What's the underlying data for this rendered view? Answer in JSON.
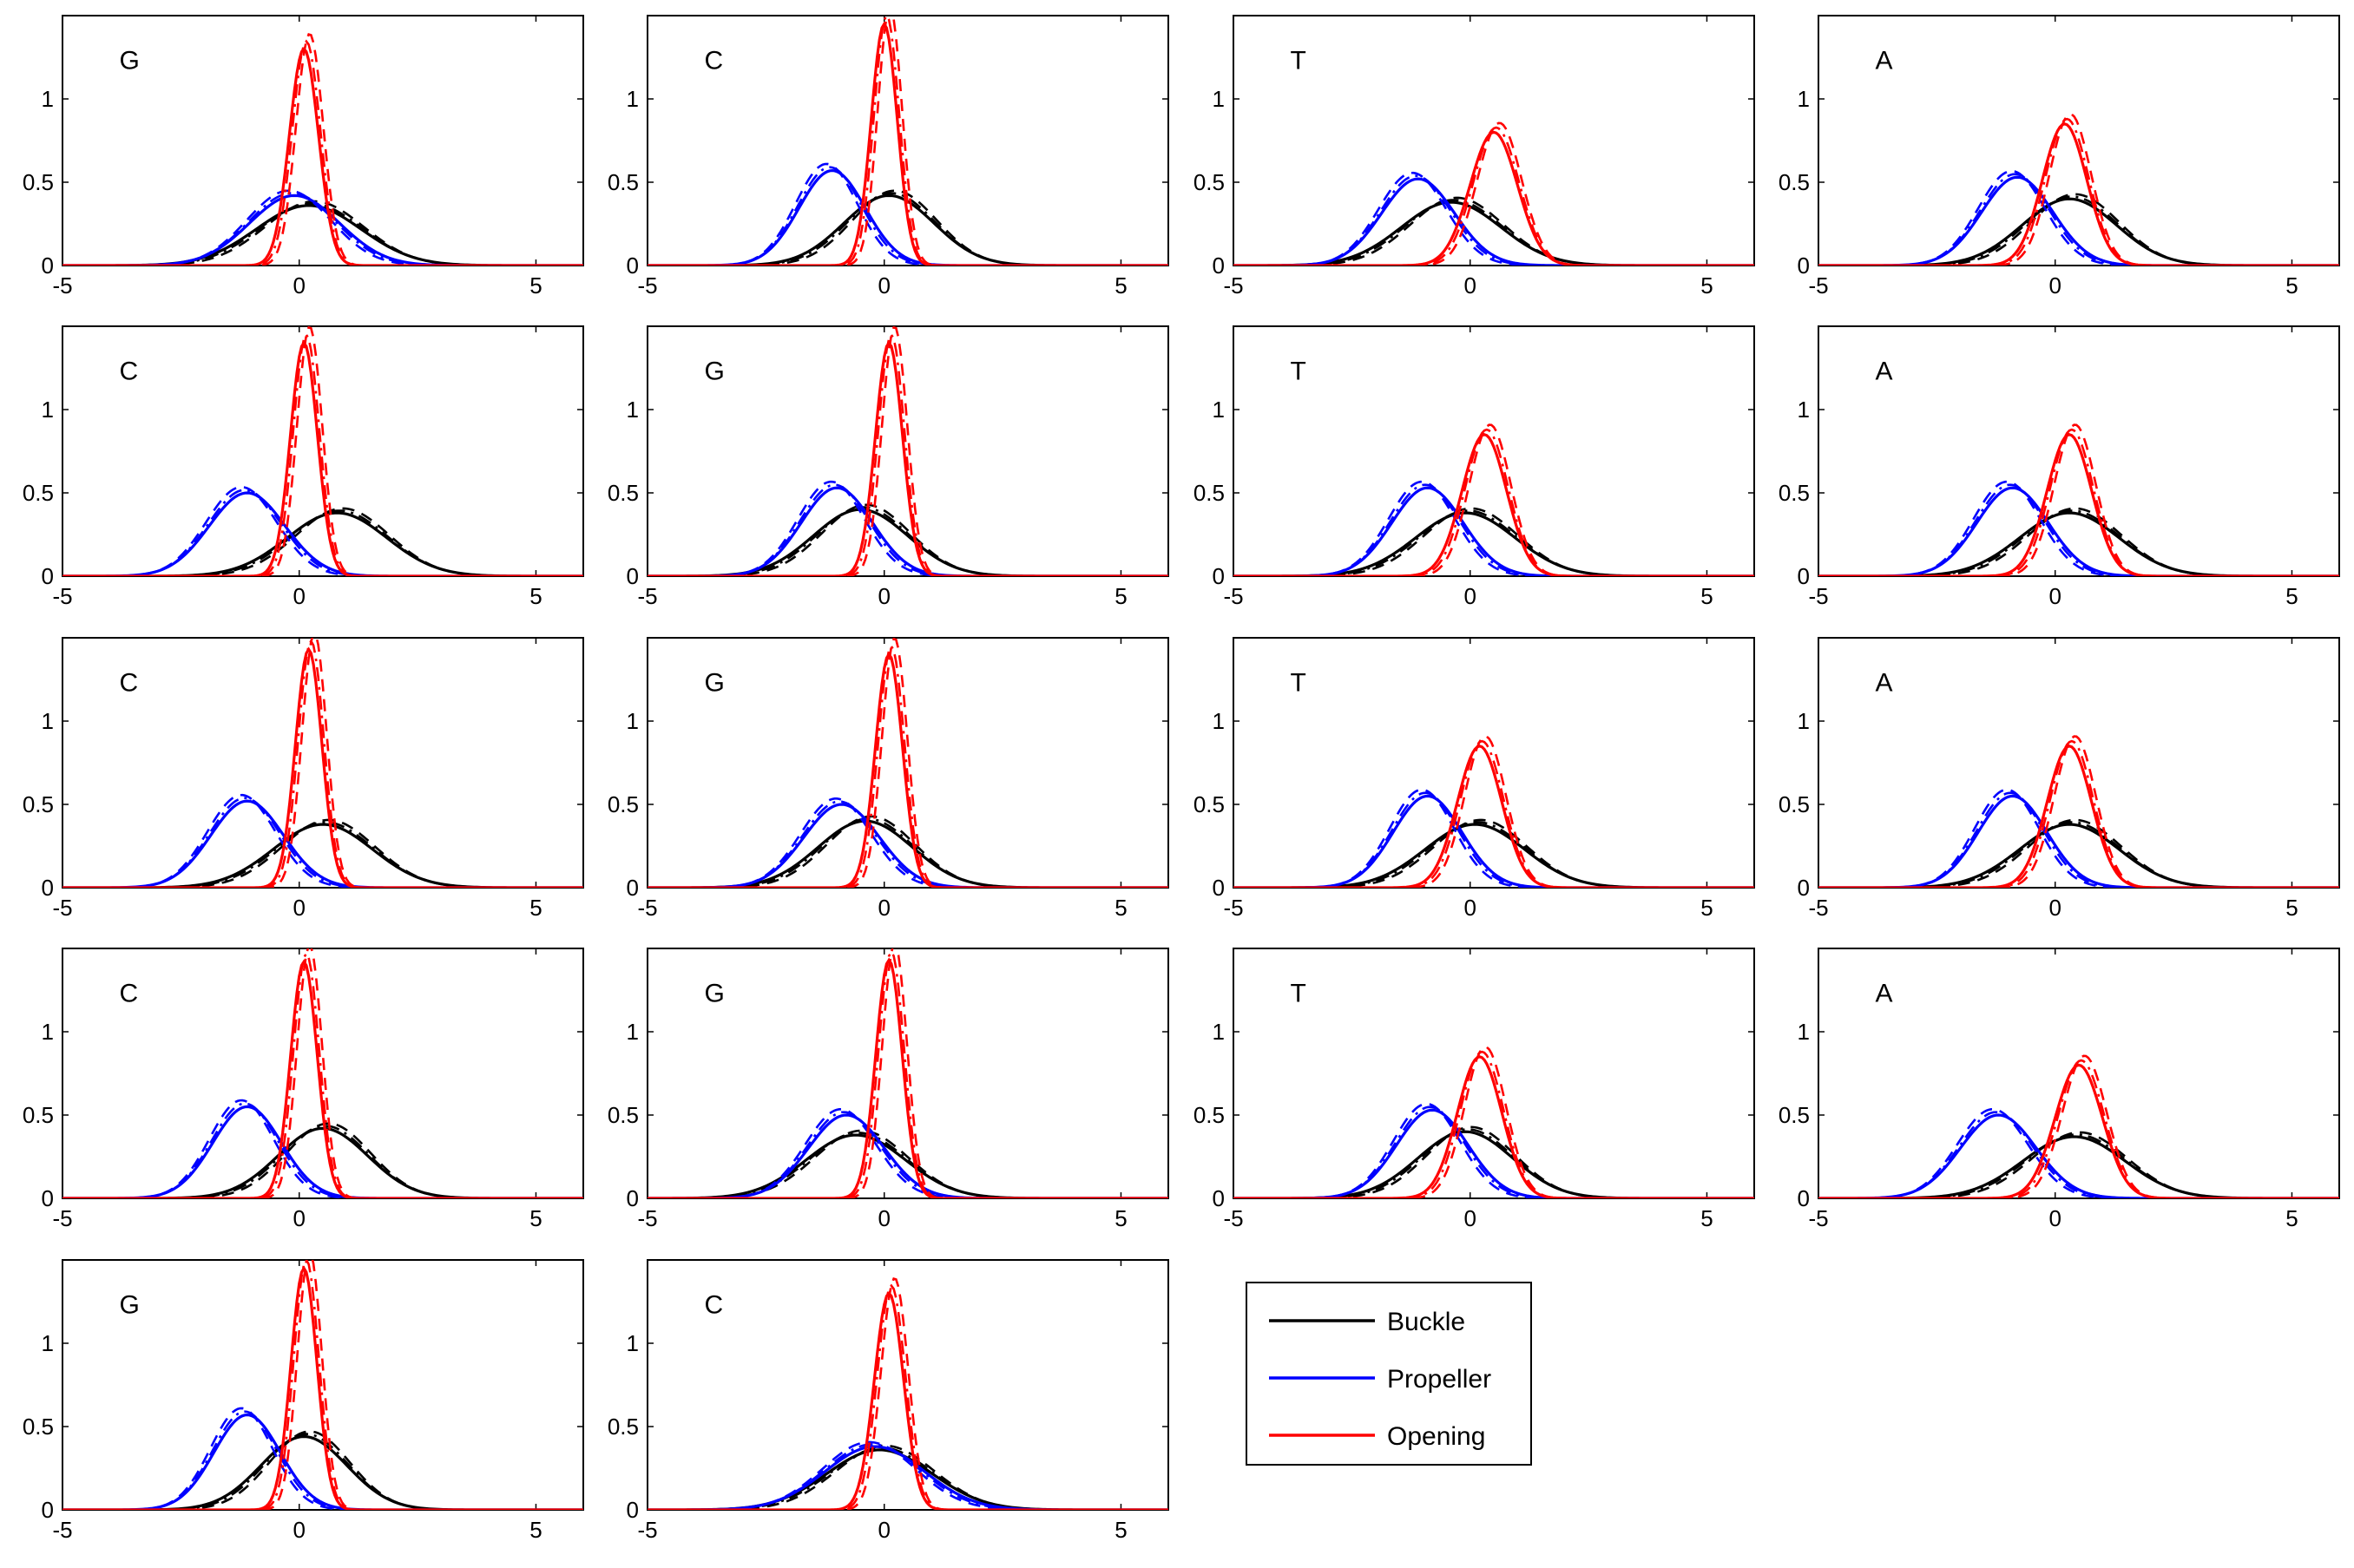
{
  "chart_data": {
    "type": "line",
    "layout": {
      "rows": 5,
      "cols": 4
    },
    "x_range": [
      -5,
      6
    ],
    "y_range": [
      0,
      1.5
    ],
    "x_ticks": [
      -5,
      0,
      5
    ],
    "y_ticks": [
      0,
      0.5,
      1
    ],
    "series": [
      {
        "name": "Buckle",
        "color": "#000000"
      },
      {
        "name": "Propeller",
        "color": "#0000ff"
      },
      {
        "name": "Opening",
        "color": "#ff0000"
      }
    ],
    "legend": {
      "placement": "bottom-right",
      "entries": [
        "Buckle",
        "Propeller",
        "Opening"
      ]
    },
    "curve_variants": [
      "solid",
      "dashed",
      "dash-dot"
    ],
    "panels": [
      {
        "label": "G",
        "buckle": {
          "mu": 0.2,
          "peak": 0.36
        },
        "propeller": {
          "mu": -0.1,
          "peak": 0.42
        },
        "opening": {
          "mu": 0.1,
          "peak": 1.3
        }
      },
      {
        "label": "C",
        "buckle": {
          "mu": 0.1,
          "peak": 0.42
        },
        "propeller": {
          "mu": -1.1,
          "peak": 0.57
        },
        "opening": {
          "mu": 0.0,
          "peak": 1.45
        }
      },
      {
        "label": "T",
        "buckle": {
          "mu": -0.4,
          "peak": 0.38
        },
        "propeller": {
          "mu": -1.1,
          "peak": 0.52
        },
        "opening": {
          "mu": 0.5,
          "peak": 0.8
        }
      },
      {
        "label": "A",
        "buckle": {
          "mu": 0.3,
          "peak": 0.4
        },
        "propeller": {
          "mu": -0.8,
          "peak": 0.53
        },
        "opening": {
          "mu": 0.2,
          "peak": 0.85
        }
      },
      {
        "label": "C",
        "buckle": {
          "mu": 0.8,
          "peak": 0.38
        },
        "propeller": {
          "mu": -1.1,
          "peak": 0.5
        },
        "opening": {
          "mu": 0.1,
          "peak": 1.4
        }
      },
      {
        "label": "G",
        "buckle": {
          "mu": -0.5,
          "peak": 0.4
        },
        "propeller": {
          "mu": -1.0,
          "peak": 0.53
        },
        "opening": {
          "mu": 0.1,
          "peak": 1.4
        }
      },
      {
        "label": "T",
        "buckle": {
          "mu": -0.1,
          "peak": 0.38
        },
        "propeller": {
          "mu": -0.9,
          "peak": 0.53
        },
        "opening": {
          "mu": 0.3,
          "peak": 0.85
        }
      },
      {
        "label": "A",
        "buckle": {
          "mu": 0.3,
          "peak": 0.38
        },
        "propeller": {
          "mu": -0.9,
          "peak": 0.53
        },
        "opening": {
          "mu": 0.3,
          "peak": 0.85
        }
      },
      {
        "label": "C",
        "buckle": {
          "mu": 0.5,
          "peak": 0.38
        },
        "propeller": {
          "mu": -1.1,
          "peak": 0.52
        },
        "opening": {
          "mu": 0.2,
          "peak": 1.43
        }
      },
      {
        "label": "G",
        "buckle": {
          "mu": -0.4,
          "peak": 0.4
        },
        "propeller": {
          "mu": -0.9,
          "peak": 0.5
        },
        "opening": {
          "mu": 0.1,
          "peak": 1.4
        }
      },
      {
        "label": "T",
        "buckle": {
          "mu": 0.1,
          "peak": 0.38
        },
        "propeller": {
          "mu": -0.9,
          "peak": 0.55
        },
        "opening": {
          "mu": 0.2,
          "peak": 0.85
        }
      },
      {
        "label": "A",
        "buckle": {
          "mu": 0.3,
          "peak": 0.38
        },
        "propeller": {
          "mu": -0.9,
          "peak": 0.55
        },
        "opening": {
          "mu": 0.3,
          "peak": 0.85
        }
      },
      {
        "label": "C",
        "buckle": {
          "mu": 0.5,
          "peak": 0.42
        },
        "propeller": {
          "mu": -1.1,
          "peak": 0.55
        },
        "opening": {
          "mu": 0.1,
          "peak": 1.42
        }
      },
      {
        "label": "G",
        "buckle": {
          "mu": -0.6,
          "peak": 0.38
        },
        "propeller": {
          "mu": -0.8,
          "peak": 0.5
        },
        "opening": {
          "mu": 0.1,
          "peak": 1.43
        }
      },
      {
        "label": "T",
        "buckle": {
          "mu": -0.1,
          "peak": 0.4
        },
        "propeller": {
          "mu": -0.8,
          "peak": 0.53
        },
        "opening": {
          "mu": 0.2,
          "peak": 0.85
        }
      },
      {
        "label": "A",
        "buckle": {
          "mu": 0.4,
          "peak": 0.37
        },
        "propeller": {
          "mu": -1.2,
          "peak": 0.5
        },
        "opening": {
          "mu": 0.5,
          "peak": 0.8
        }
      },
      {
        "label": "G",
        "buckle": {
          "mu": 0.1,
          "peak": 0.44
        },
        "propeller": {
          "mu": -1.1,
          "peak": 0.57
        },
        "opening": {
          "mu": 0.1,
          "peak": 1.45
        }
      },
      {
        "label": "C",
        "buckle": {
          "mu": -0.1,
          "peak": 0.36
        },
        "propeller": {
          "mu": -0.2,
          "peak": 0.38
        },
        "opening": {
          "mu": 0.1,
          "peak": 1.3
        }
      }
    ]
  }
}
